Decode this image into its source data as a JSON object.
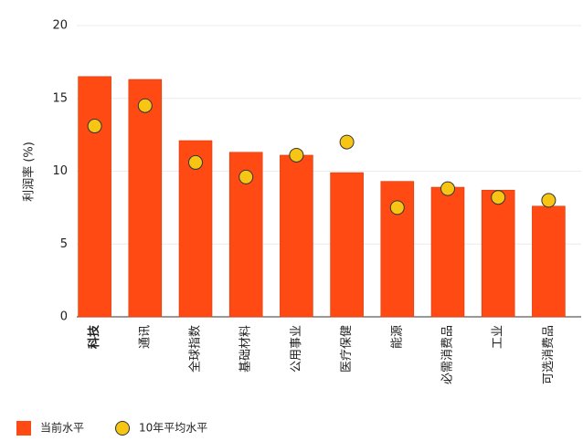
{
  "chart_data": {
    "type": "bar",
    "y_label": "利润率 (%)",
    "categories": [
      "科技",
      "通讯",
      "全球指数",
      "基础材料",
      "公用事业",
      "医疗保健",
      "能源",
      "必需消费品",
      "工业",
      "可选消费品"
    ],
    "series": [
      {
        "name": "当前水平",
        "type": "bar",
        "color": "#ff4a14",
        "values": [
          16.5,
          16.3,
          12.1,
          11.3,
          11.1,
          9.9,
          9.3,
          8.9,
          8.7,
          7.6
        ]
      },
      {
        "name": "10年平均水平",
        "type": "scatter",
        "color": "#f7c614",
        "values": [
          13.1,
          14.5,
          10.6,
          9.6,
          11.1,
          12.0,
          7.5,
          8.8,
          8.2,
          8.0
        ]
      }
    ],
    "ylim": [
      0,
      20
    ],
    "yticks": [
      0,
      5,
      10,
      15,
      20
    ],
    "grid": true
  }
}
